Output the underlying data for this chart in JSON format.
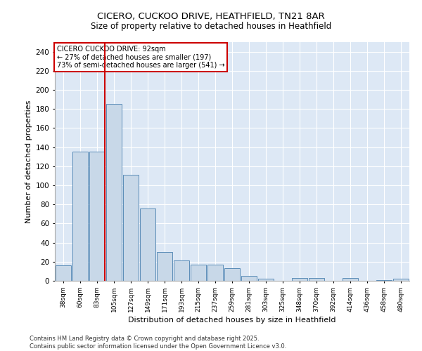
{
  "title_line1": "CICERO, CUCKOO DRIVE, HEATHFIELD, TN21 8AR",
  "title_line2": "Size of property relative to detached houses in Heathfield",
  "xlabel": "Distribution of detached houses by size in Heathfield",
  "ylabel": "Number of detached properties",
  "categories": [
    "38sqm",
    "60sqm",
    "83sqm",
    "105sqm",
    "127sqm",
    "149sqm",
    "171sqm",
    "193sqm",
    "215sqm",
    "237sqm",
    "259sqm",
    "281sqm",
    "303sqm",
    "325sqm",
    "348sqm",
    "370sqm",
    "392sqm",
    "414sqm",
    "436sqm",
    "458sqm",
    "480sqm"
  ],
  "values": [
    16,
    135,
    135,
    185,
    111,
    76,
    30,
    21,
    17,
    17,
    13,
    5,
    2,
    0,
    3,
    3,
    0,
    3,
    0,
    1,
    2
  ],
  "bar_color": "#c8d8e8",
  "bar_edge_color": "#5b8db8",
  "background_color": "#dde8f5",
  "grid_color": "#ffffff",
  "annotation_box_color": "#cc0000",
  "annotation_text": "CICERO CUCKOO DRIVE: 92sqm\n← 27% of detached houses are smaller (197)\n73% of semi-detached houses are larger (541) →",
  "vline_color": "#cc0000",
  "ylim": [
    0,
    250
  ],
  "yticks": [
    0,
    20,
    40,
    60,
    80,
    100,
    120,
    140,
    160,
    180,
    200,
    220,
    240
  ],
  "footer": "Contains HM Land Registry data © Crown copyright and database right 2025.\nContains public sector information licensed under the Open Government Licence v3.0."
}
